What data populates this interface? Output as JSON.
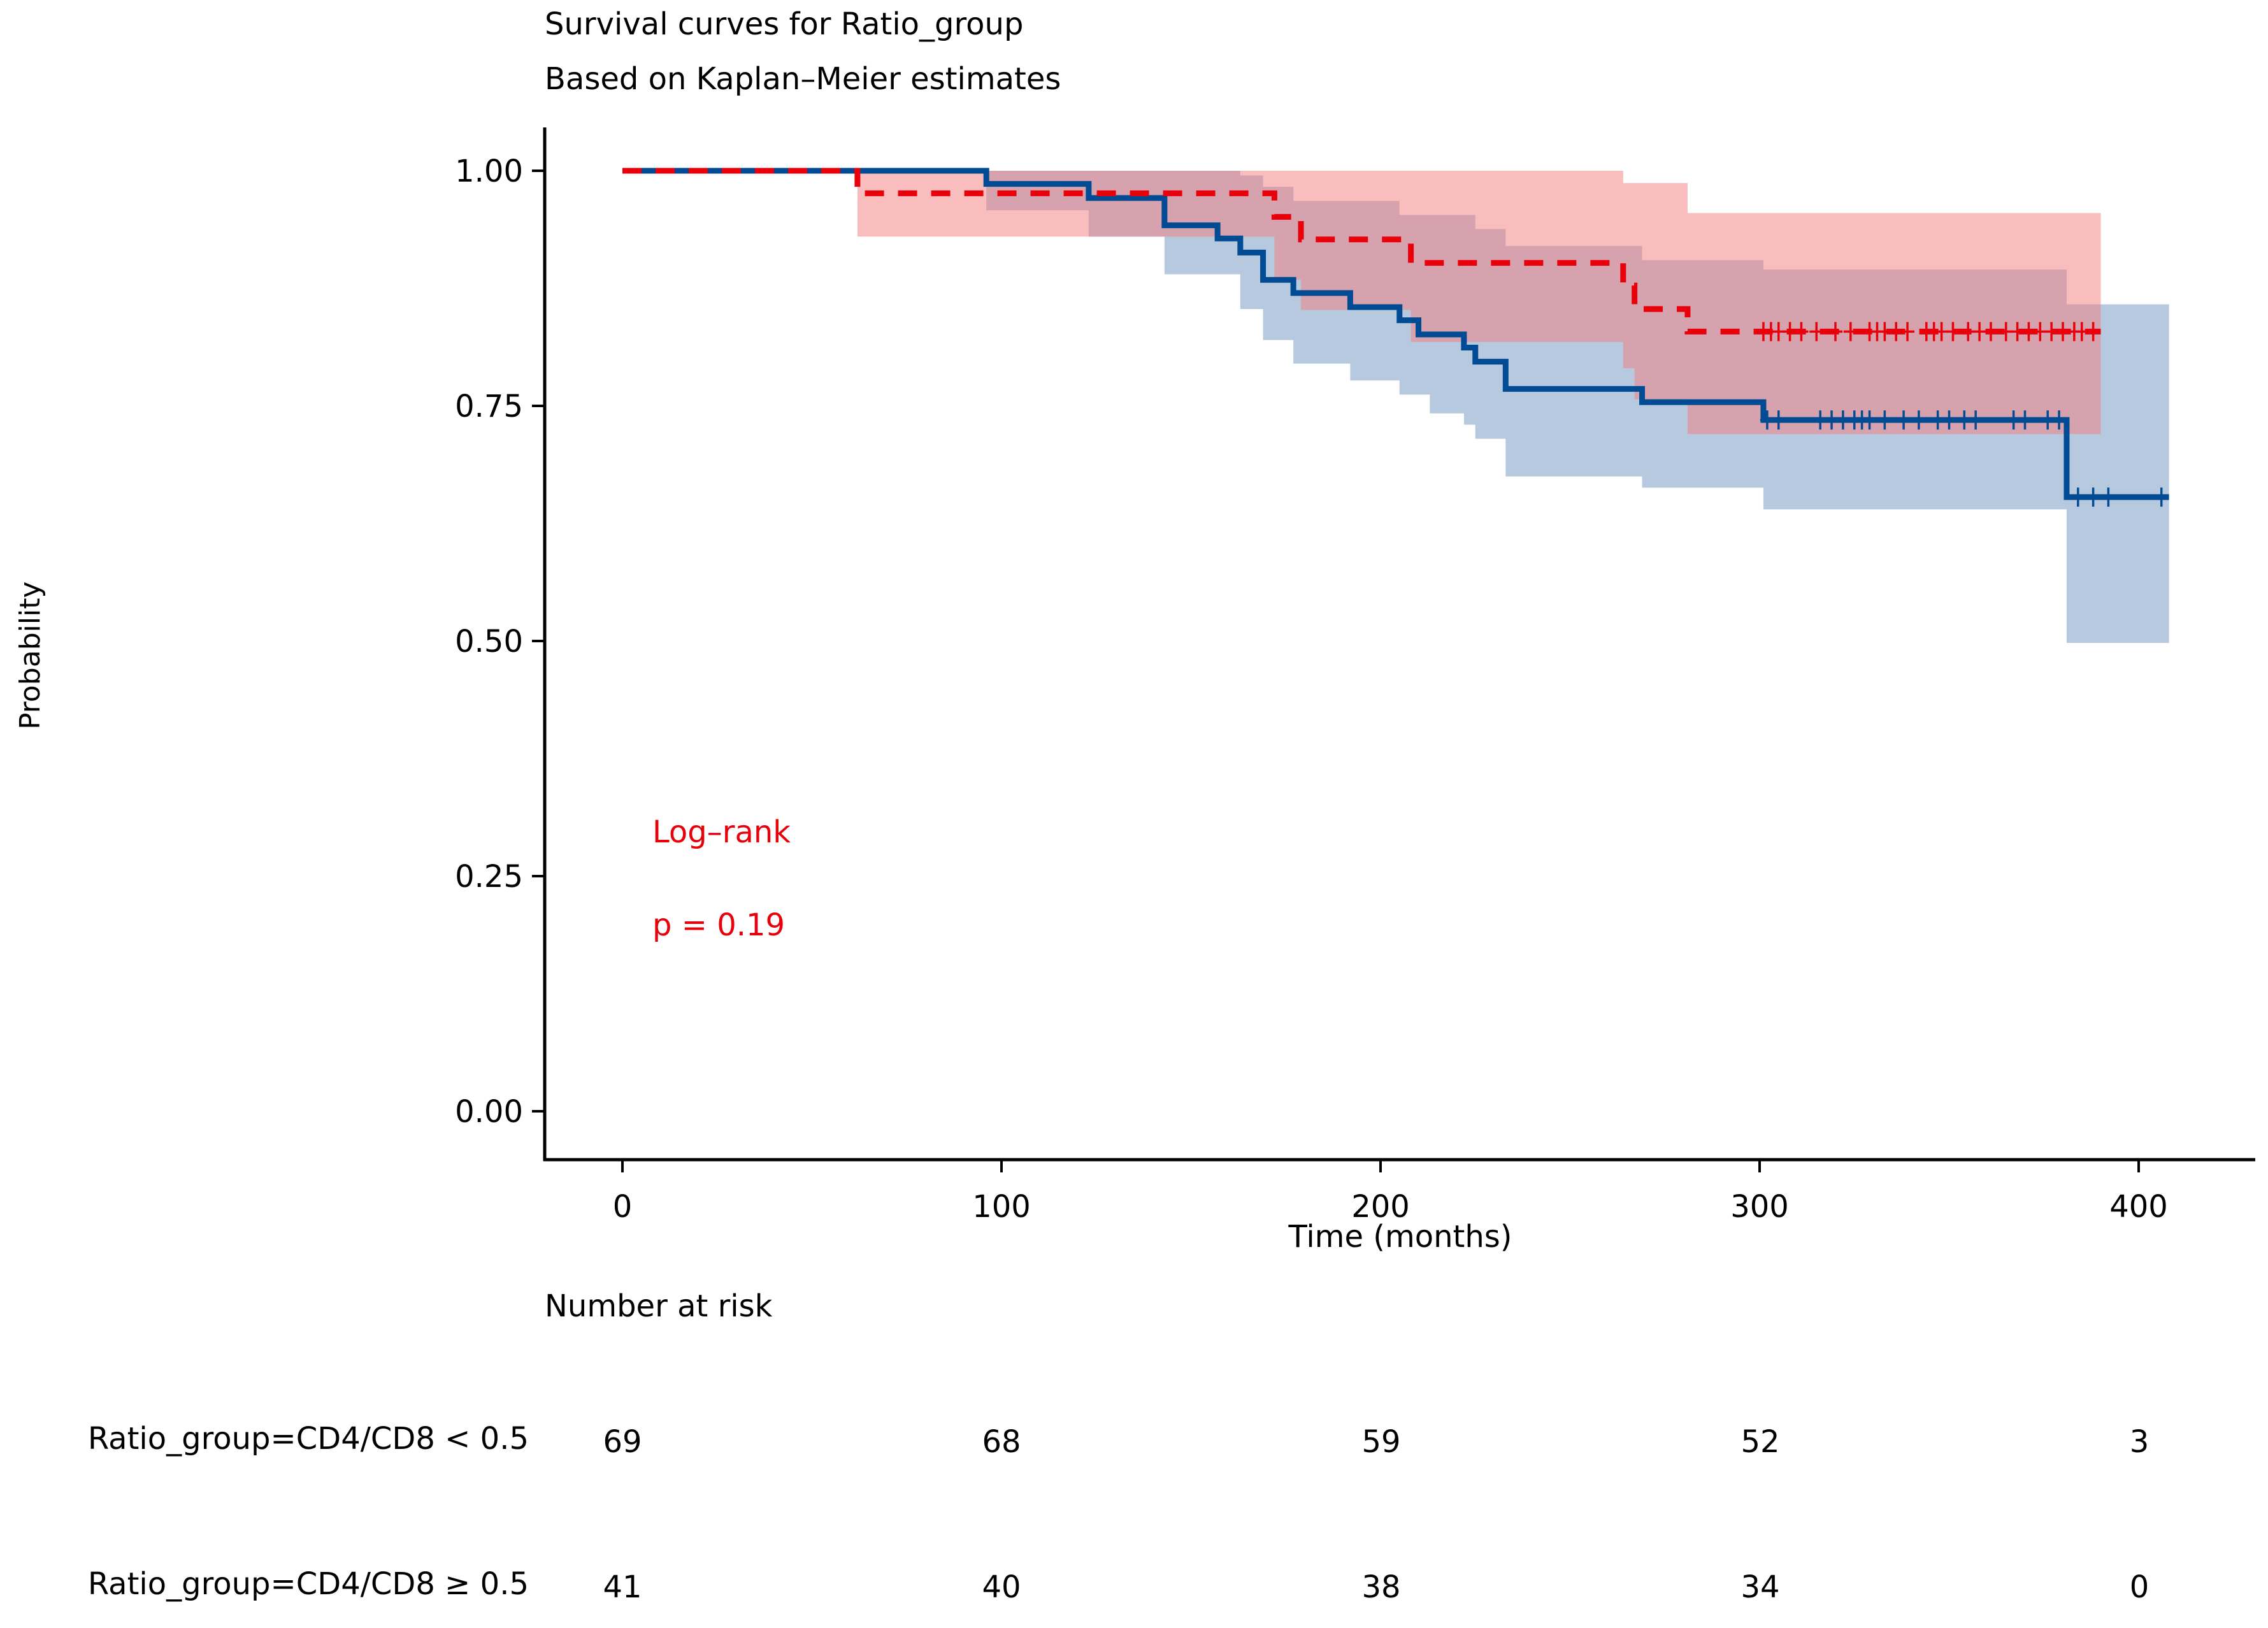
{
  "chart_data": {
    "type": "line",
    "subtype": "kaplan-meier",
    "title": "Survival curves for Ratio_group",
    "subtitle": "Based on Kaplan–Meier estimates",
    "xlabel": "Time (months)",
    "ylabel": "Probability",
    "xlim": [
      -20,
      430
    ],
    "ylim": [
      -0.05,
      1.05
    ],
    "xticks": [
      0,
      100,
      200,
      300,
      400
    ],
    "xtick_labels": [
      "0",
      "100",
      "200",
      "300",
      "400"
    ],
    "yticks": [
      0,
      0.25,
      0.5,
      0.75,
      1
    ],
    "ytick_labels": [
      "0.00",
      "0.25",
      "0.50",
      "0.75",
      "1.00"
    ],
    "annotation": {
      "line1": "Log–rank",
      "line2": "p = 0.19",
      "color": "#e8000b"
    },
    "series": [
      {
        "name": "Ratio_group=CD4/CD8 < 0.5",
        "color": "#004b93",
        "ci_color": "#6d93bf",
        "dashed": false,
        "steps": [
          [
            0,
            1.0
          ],
          [
            96,
            0.986
          ],
          [
            123,
            0.971
          ],
          [
            143,
            0.942
          ],
          [
            157,
            0.928
          ],
          [
            163,
            0.913
          ],
          [
            169,
            0.884
          ],
          [
            177,
            0.87
          ],
          [
            192,
            0.855
          ],
          [
            205,
            0.841
          ],
          [
            210,
            0.826
          ],
          [
            222,
            0.812
          ],
          [
            225,
            0.797
          ],
          [
            233,
            0.768
          ],
          [
            269,
            0.754
          ],
          [
            301,
            0.735
          ],
          [
            381,
            0.653
          ],
          [
            408,
            0.653
          ]
        ],
        "ci_upper": [
          [
            0,
            1.0
          ],
          [
            96,
            1.0
          ],
          [
            123,
            1.0
          ],
          [
            143,
            1.0
          ],
          [
            163,
            0.995
          ],
          [
            169,
            0.983
          ],
          [
            177,
            0.968
          ],
          [
            205,
            0.953
          ],
          [
            225,
            0.938
          ],
          [
            233,
            0.92
          ],
          [
            269,
            0.905
          ],
          [
            301,
            0.895
          ],
          [
            381,
            0.858
          ],
          [
            408,
            0.858
          ]
        ],
        "ci_lower": [
          [
            0,
            1.0
          ],
          [
            96,
            0.958
          ],
          [
            123,
            0.93
          ],
          [
            143,
            0.89
          ],
          [
            163,
            0.853
          ],
          [
            169,
            0.82
          ],
          [
            177,
            0.795
          ],
          [
            192,
            0.777
          ],
          [
            205,
            0.762
          ],
          [
            213,
            0.742
          ],
          [
            222,
            0.73
          ],
          [
            225,
            0.715
          ],
          [
            233,
            0.675
          ],
          [
            269,
            0.663
          ],
          [
            301,
            0.64
          ],
          [
            381,
            0.498
          ],
          [
            408,
            0.498
          ]
        ],
        "censor_times": [
          302,
          305,
          316,
          319,
          322,
          325,
          327,
          329,
          333,
          338,
          342,
          347,
          350,
          354,
          357,
          367,
          370,
          376,
          379,
          384,
          388,
          392,
          406
        ]
      },
      {
        "name": "Ratio_group=CD4/CD8 ≥ 0.5",
        "color": "#e8000b",
        "ci_color": "#f47c7c",
        "dashed": true,
        "steps": [
          [
            0,
            1.0
          ],
          [
            62,
            0.976
          ],
          [
            172,
            0.951
          ],
          [
            179,
            0.927
          ],
          [
            208,
            0.902
          ],
          [
            264,
            0.878
          ],
          [
            267,
            0.853
          ],
          [
            281,
            0.829
          ],
          [
            390,
            0.829
          ]
        ],
        "ci_upper": [
          [
            0,
            1.0
          ],
          [
            264,
            0.987
          ],
          [
            281,
            0.955
          ],
          [
            390,
            0.955
          ]
        ],
        "ci_lower": [
          [
            0,
            1.0
          ],
          [
            62,
            0.93
          ],
          [
            123,
            0.93
          ],
          [
            172,
            0.884
          ],
          [
            179,
            0.852
          ],
          [
            208,
            0.818
          ],
          [
            264,
            0.79
          ],
          [
            267,
            0.757
          ],
          [
            281,
            0.72
          ],
          [
            390,
            0.72
          ]
        ],
        "censor_times": [
          301,
          303,
          305,
          308,
          311,
          315,
          320,
          324,
          329,
          331,
          333,
          336,
          339,
          344,
          346,
          348,
          351,
          355,
          358,
          361,
          365,
          368,
          371,
          374,
          377,
          380,
          383,
          385,
          388
        ]
      }
    ]
  },
  "risk_table": {
    "title": "Number at risk",
    "times": [
      0,
      100,
      200,
      300,
      400
    ],
    "rows": [
      {
        "label": "Ratio_group=CD4/CD8 < 0.5",
        "values": [
          "69",
          "68",
          "59",
          "52",
          "3"
        ]
      },
      {
        "label": "Ratio_group=CD4/CD8 ≥ 0.5",
        "values": [
          "41",
          "40",
          "38",
          "34",
          "0"
        ]
      }
    ]
  }
}
